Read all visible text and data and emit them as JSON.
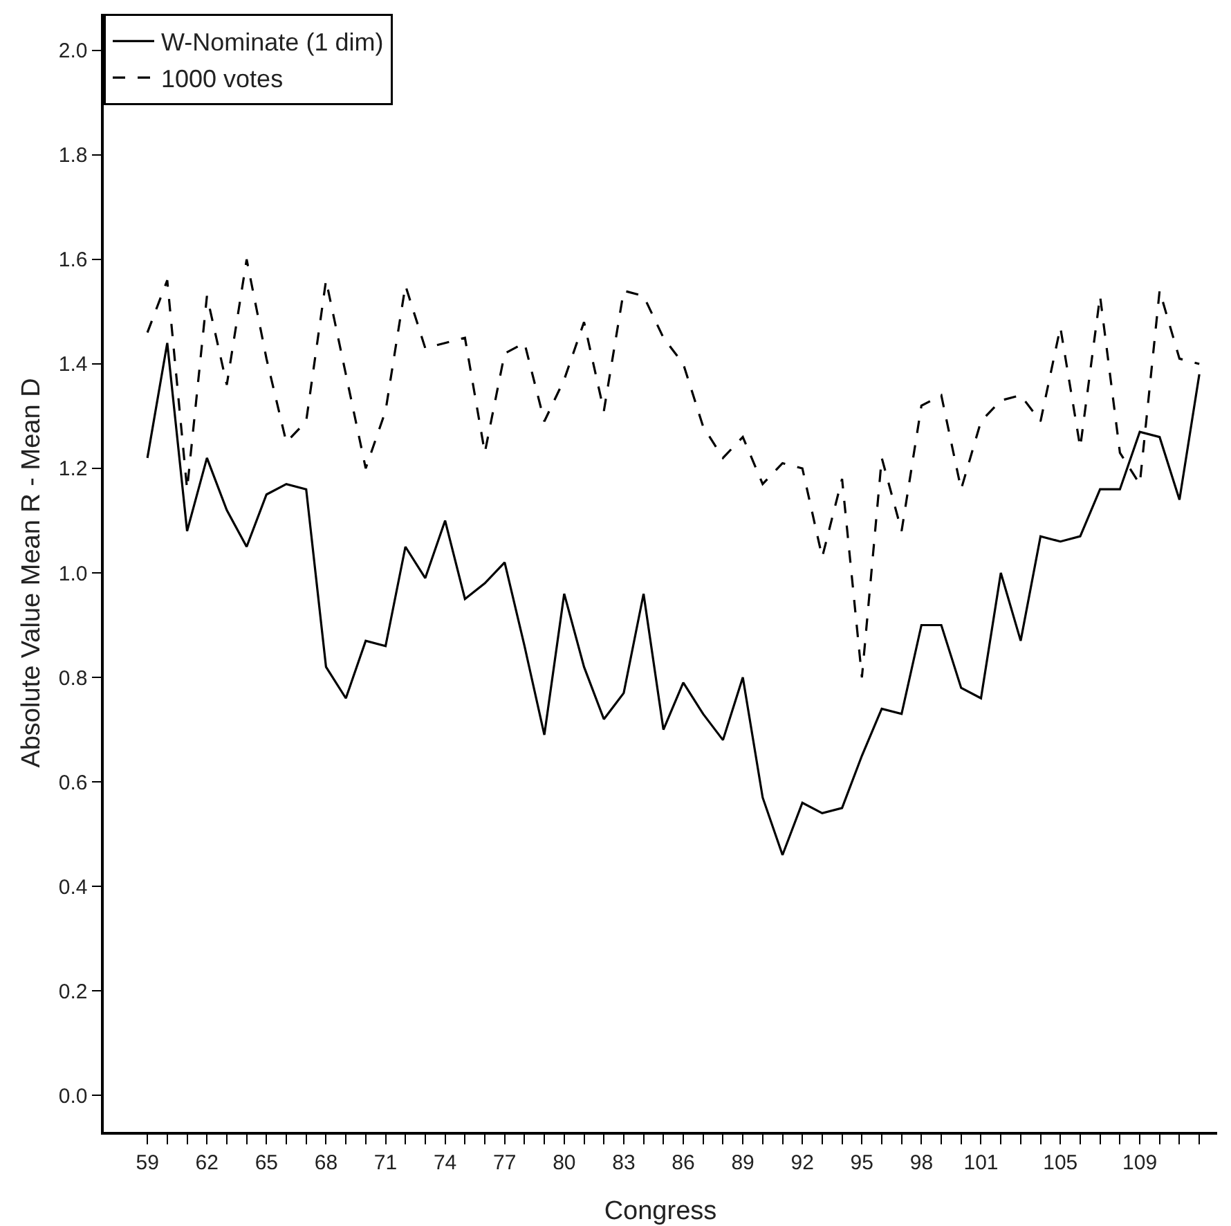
{
  "chart_data": {
    "type": "line",
    "xlabel": "Congress",
    "ylabel": "Absolute Value Mean R - Mean D",
    "x": [
      59,
      60,
      61,
      62,
      63,
      64,
      65,
      66,
      67,
      68,
      69,
      70,
      71,
      72,
      73,
      74,
      75,
      76,
      77,
      78,
      79,
      80,
      81,
      82,
      83,
      84,
      85,
      86,
      87,
      88,
      89,
      90,
      91,
      92,
      93,
      94,
      95,
      96,
      97,
      98,
      99,
      100,
      101,
      102,
      103,
      104,
      105,
      106,
      107,
      108,
      109,
      110,
      111,
      112
    ],
    "series": [
      {
        "name": "W-Nominate (1 dim)",
        "color": "#000000",
        "line_style": "solid",
        "values": [
          1.22,
          1.44,
          1.08,
          1.22,
          1.12,
          1.05,
          1.15,
          1.17,
          1.16,
          0.82,
          0.76,
          0.87,
          0.86,
          1.05,
          0.99,
          1.1,
          0.95,
          0.98,
          1.02,
          0.86,
          0.69,
          0.96,
          0.82,
          0.72,
          0.77,
          0.96,
          0.7,
          0.79,
          0.73,
          0.68,
          0.8,
          0.57,
          0.46,
          0.56,
          0.54,
          0.55,
          0.65,
          0.74,
          0.73,
          0.9,
          0.9,
          0.78,
          0.76,
          1.0,
          0.87,
          1.07,
          1.06,
          1.07,
          1.16,
          1.16,
          1.27,
          1.26,
          1.14,
          1.38
        ]
      },
      {
        "name": "1000 votes",
        "color": "#000000",
        "line_style": "dashed",
        "values": [
          1.46,
          1.56,
          1.16,
          1.53,
          1.36,
          1.6,
          1.41,
          1.25,
          1.29,
          1.56,
          1.38,
          1.2,
          1.31,
          1.55,
          1.43,
          1.44,
          1.45,
          1.23,
          1.42,
          1.44,
          1.29,
          1.37,
          1.48,
          1.31,
          1.54,
          1.53,
          1.45,
          1.4,
          1.28,
          1.22,
          1.26,
          1.17,
          1.21,
          1.2,
          1.03,
          1.18,
          0.8,
          1.22,
          1.08,
          1.32,
          1.34,
          1.16,
          1.29,
          1.33,
          1.34,
          1.29,
          1.47,
          1.24,
          1.53,
          1.23,
          1.17,
          1.54,
          1.41,
          1.4
        ]
      }
    ],
    "xlim": [
      56.8,
      112.9
    ],
    "xticks": [
      59,
      {
        "value": 60,
        "label": null
      },
      {
        "value": 61,
        "label": null
      },
      62,
      {
        "value": 63,
        "label": null
      },
      {
        "value": 64,
        "label": null
      },
      65,
      {
        "value": 66,
        "label": null
      },
      {
        "value": 67,
        "label": null
      },
      68,
      {
        "value": 69,
        "label": null
      },
      {
        "value": 70,
        "label": null
      },
      71,
      {
        "value": 72,
        "label": null
      },
      {
        "value": 73,
        "label": null
      },
      74,
      {
        "value": 75,
        "label": null
      },
      {
        "value": 76,
        "label": null
      },
      77,
      {
        "value": 78,
        "label": null
      },
      {
        "value": 79,
        "label": null
      },
      80,
      {
        "value": 81,
        "label": null
      },
      {
        "value": 82,
        "label": null
      },
      83,
      {
        "value": 84,
        "label": null
      },
      {
        "value": 85,
        "label": null
      },
      86,
      {
        "value": 87,
        "label": null
      },
      {
        "value": 88,
        "label": null
      },
      89,
      {
        "value": 90,
        "label": null
      },
      {
        "value": 91,
        "label": null
      },
      92,
      {
        "value": 93,
        "label": null
      },
      {
        "value": 94,
        "label": null
      },
      95,
      {
        "value": 96,
        "label": null
      },
      {
        "value": 97,
        "label": null
      },
      98,
      {
        "value": 99,
        "label": null
      },
      {
        "value": 100,
        "label": null
      },
      101,
      {
        "value": 102,
        "label": null
      },
      {
        "value": 103,
        "label": null
      },
      {
        "value": 104,
        "label": null
      },
      105,
      {
        "value": 106,
        "label": null
      },
      {
        "value": 107,
        "label": null
      },
      {
        "value": 108,
        "label": null
      },
      109,
      {
        "value": 110,
        "label": null
      },
      {
        "value": 111,
        "label": null
      },
      {
        "value": 112,
        "label": null
      }
    ],
    "ylim": [
      -0.07,
      2.07
    ],
    "yticks": [
      {
        "value": 0,
        "label": "0.0"
      },
      {
        "value": 0.2,
        "label": "0.2"
      },
      {
        "value": 0.4,
        "label": "0.4"
      },
      {
        "value": 0.6,
        "label": "0.6"
      },
      {
        "value": 0.8,
        "label": "0.8"
      },
      {
        "value": 1,
        "label": "1.0"
      },
      {
        "value": 1.2,
        "label": "1.2"
      },
      {
        "value": 1.4,
        "label": "1.4"
      },
      {
        "value": 1.6,
        "label": "1.6"
      },
      {
        "value": 1.8,
        "label": "1.8"
      },
      {
        "value": 2,
        "label": "2.0"
      }
    ],
    "grid": false,
    "legend": "top left",
    "marker": "none"
  }
}
